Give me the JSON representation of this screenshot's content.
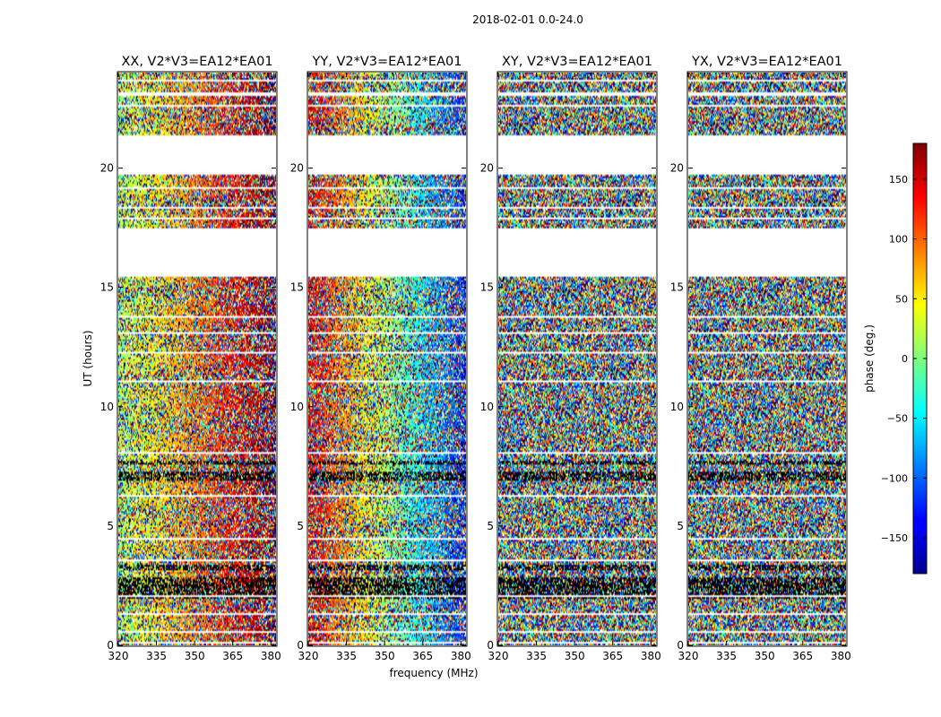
{
  "chart_data": {
    "type": "heatmap",
    "suptitle": "2018-02-01 0.0-24.0",
    "xlabel": "frequency (MHz)",
    "ylabel": "UT (hours)",
    "xlim": [
      320,
      382
    ],
    "ylim": [
      0,
      24
    ],
    "xticks": [
      320,
      335,
      350,
      365,
      380
    ],
    "yticks": [
      0,
      5,
      10,
      15,
      20
    ],
    "panels": [
      {
        "title": "XX, V2*V3=EA12*EA01",
        "coherence": 0.55,
        "phase_start_deg": 10,
        "phase_span_deg": 170
      },
      {
        "title": "YY, V2*V3=EA12*EA01",
        "coherence": 0.55,
        "phase_start_deg": 150,
        "phase_span_deg": -280
      },
      {
        "title": "XY, V2*V3=EA12*EA01",
        "coherence": 0.0,
        "phase_start_deg": 0,
        "phase_span_deg": 0
      },
      {
        "title": "YX, V2*V3=EA12*EA01",
        "coherence": 0.0,
        "phase_start_deg": 0,
        "phase_span_deg": 0
      }
    ],
    "flagged_ut_ranges": [
      [
        0.06,
        0.12
      ],
      [
        0.55,
        0.6
      ],
      [
        1.3,
        1.38
      ],
      [
        2.05,
        2.1
      ],
      [
        3.55,
        3.62
      ],
      [
        4.45,
        4.52
      ],
      [
        5.52,
        5.58
      ],
      [
        6.25,
        6.3
      ],
      [
        7.25,
        7.3
      ],
      [
        8.05,
        8.12
      ],
      [
        8.6,
        8.65
      ],
      [
        9.8,
        9.86
      ],
      [
        11.05,
        11.12
      ],
      [
        12.2,
        12.28
      ],
      [
        13.05,
        13.12
      ],
      [
        13.75,
        13.82
      ],
      [
        14.75,
        14.8
      ],
      [
        15.45,
        17.45
      ],
      [
        17.85,
        17.95
      ],
      [
        18.3,
        18.36
      ],
      [
        19.15,
        19.22
      ],
      [
        19.7,
        21.4
      ],
      [
        21.95,
        22.0
      ],
      [
        22.55,
        22.62
      ],
      [
        23.05,
        23.15
      ],
      [
        23.65,
        23.72
      ]
    ],
    "dark_ut_ranges": [
      [
        1.95,
        2.85
      ],
      [
        3.15,
        3.4
      ],
      [
        6.9,
        7.25
      ],
      [
        7.55,
        7.75
      ]
    ],
    "colorbar": {
      "label": "phase (deg.)",
      "range": [
        -180,
        180
      ],
      "ticks": [
        150,
        100,
        50,
        0,
        -50,
        -100,
        -150
      ],
      "tick_labels": [
        "150",
        "100",
        "50",
        "0",
        "−50",
        "−100",
        "−150"
      ],
      "colormap": "jet"
    }
  }
}
